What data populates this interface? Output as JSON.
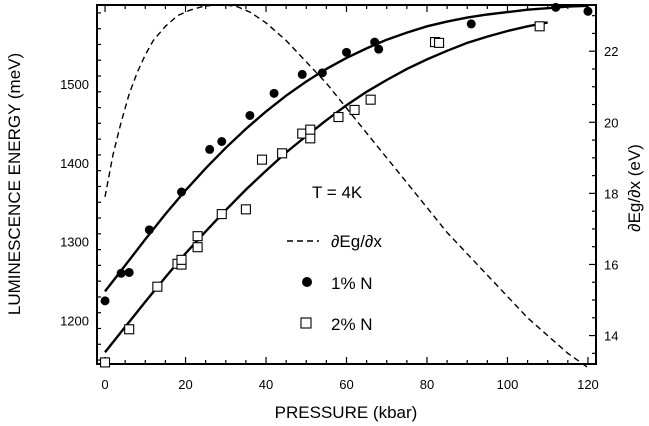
{
  "chart_data": {
    "type": "scatter",
    "xlabel": "PRESSURE (kbar)",
    "ylabel": "LUMINESCENCE ENERGY (meV)",
    "y2label": "∂Eg/∂x (eV)",
    "xlim": [
      -2,
      122
    ],
    "ylim": [
      1145,
      1600
    ],
    "y2lim": [
      13.2,
      23.3
    ],
    "x_ticks": [
      0,
      20,
      40,
      60,
      80,
      100,
      120
    ],
    "y_ticks": [
      1200,
      1300,
      1400,
      1500
    ],
    "y2_ticks": [
      14,
      16,
      18,
      20,
      22
    ],
    "annotation": "T = 4K",
    "legend": {
      "placement": "center-right",
      "entries": [
        {
          "label": "∂Eg/∂x",
          "marker": "dashed-line"
        },
        {
          "label": "1% N",
          "marker": "filled-circle"
        },
        {
          "label": "2% N",
          "marker": "open-square"
        }
      ]
    },
    "series": [
      {
        "name": "1% N",
        "marker": "filled-circle",
        "axis": "left",
        "points": [
          [
            0,
            1225
          ],
          [
            4,
            1260
          ],
          [
            6,
            1261
          ],
          [
            11,
            1315
          ],
          [
            19,
            1363
          ],
          [
            26,
            1417
          ],
          [
            29,
            1427
          ],
          [
            36,
            1460
          ],
          [
            42,
            1488
          ],
          [
            49,
            1512
          ],
          [
            54,
            1514
          ],
          [
            60,
            1540
          ],
          [
            67,
            1553
          ],
          [
            68,
            1544
          ],
          [
            91,
            1576
          ],
          [
            112,
            1597
          ],
          [
            120,
            1592
          ]
        ]
      },
      {
        "name": "2% N",
        "marker": "open-square",
        "axis": "left",
        "points": [
          [
            0,
            1147
          ],
          [
            6,
            1189
          ],
          [
            13,
            1243
          ],
          [
            18,
            1272
          ],
          [
            19,
            1271
          ],
          [
            19,
            1277
          ],
          [
            23,
            1293
          ],
          [
            23,
            1307
          ],
          [
            29,
            1335
          ],
          [
            35,
            1341
          ],
          [
            39,
            1404
          ],
          [
            44,
            1412
          ],
          [
            49,
            1437
          ],
          [
            51,
            1431
          ],
          [
            51,
            1442
          ],
          [
            58,
            1458
          ],
          [
            62,
            1467
          ],
          [
            66,
            1480
          ],
          [
            82,
            1553
          ],
          [
            83,
            1552
          ],
          [
            108,
            1573
          ]
        ]
      },
      {
        "name": "fit 1% N",
        "style": "solid-line",
        "axis": "left",
        "points": [
          [
            0,
            1237
          ],
          [
            5,
            1270
          ],
          [
            10,
            1303
          ],
          [
            15,
            1335
          ],
          [
            20,
            1365
          ],
          [
            25,
            1393
          ],
          [
            30,
            1419
          ],
          [
            35,
            1443
          ],
          [
            40,
            1465
          ],
          [
            45,
            1485
          ],
          [
            50,
            1503
          ],
          [
            55,
            1519
          ],
          [
            60,
            1533
          ],
          [
            65,
            1545
          ],
          [
            70,
            1556
          ],
          [
            75,
            1565
          ],
          [
            80,
            1573
          ],
          [
            85,
            1579
          ],
          [
            90,
            1584
          ],
          [
            95,
            1588
          ],
          [
            100,
            1591
          ],
          [
            105,
            1594
          ],
          [
            110,
            1596
          ],
          [
            115,
            1598
          ],
          [
            120,
            1599
          ]
        ]
      },
      {
        "name": "fit 2% N",
        "style": "solid-line",
        "axis": "left",
        "points": [
          [
            0,
            1160
          ],
          [
            5,
            1192
          ],
          [
            10,
            1224
          ],
          [
            15,
            1255
          ],
          [
            20,
            1285
          ],
          [
            25,
            1313
          ],
          [
            30,
            1340
          ],
          [
            35,
            1366
          ],
          [
            40,
            1390
          ],
          [
            45,
            1413
          ],
          [
            50,
            1434
          ],
          [
            55,
            1454
          ],
          [
            60,
            1473
          ],
          [
            65,
            1490
          ],
          [
            70,
            1505
          ],
          [
            75,
            1519
          ],
          [
            80,
            1531
          ],
          [
            85,
            1542
          ],
          [
            90,
            1552
          ],
          [
            95,
            1560
          ],
          [
            100,
            1567
          ],
          [
            105,
            1573
          ],
          [
            110,
            1578
          ]
        ]
      },
      {
        "name": "∂Eg/∂x",
        "style": "dashed-line",
        "axis": "right",
        "points": [
          [
            0,
            17.9
          ],
          [
            2,
            19.1
          ],
          [
            4,
            20.0
          ],
          [
            6,
            20.8
          ],
          [
            8,
            21.4
          ],
          [
            10,
            21.9
          ],
          [
            12,
            22.3
          ],
          [
            15,
            22.7
          ],
          [
            18,
            23.0
          ],
          [
            21,
            23.15
          ],
          [
            24,
            23.25
          ],
          [
            27,
            23.3
          ],
          [
            30,
            23.3
          ],
          [
            33,
            23.25
          ],
          [
            36,
            23.1
          ],
          [
            40,
            22.8
          ],
          [
            45,
            22.3
          ],
          [
            50,
            21.7
          ],
          [
            55,
            21.1
          ],
          [
            60,
            20.4
          ],
          [
            65,
            19.7
          ],
          [
            70,
            19.0
          ],
          [
            75,
            18.3
          ],
          [
            80,
            17.6
          ],
          [
            85,
            16.9
          ],
          [
            90,
            16.3
          ],
          [
            95,
            15.7
          ],
          [
            100,
            15.1
          ],
          [
            105,
            14.5
          ],
          [
            110,
            14.0
          ],
          [
            115,
            13.5
          ],
          [
            120,
            13.1
          ]
        ]
      }
    ]
  }
}
